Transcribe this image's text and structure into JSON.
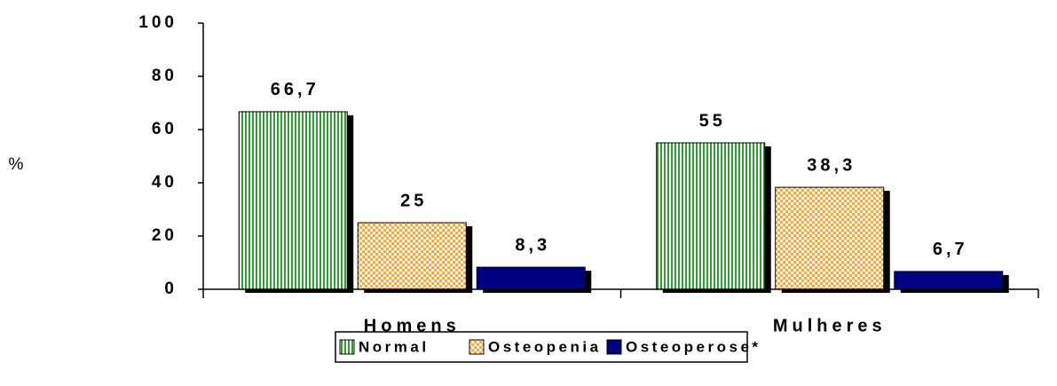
{
  "chart_data": {
    "type": "bar",
    "ylabel": "%",
    "categories": [
      "Homens",
      "Mulheres"
    ],
    "series": [
      {
        "name": "Normal",
        "color": "#2e9e2e",
        "pattern": "vertical-lines",
        "values": [
          66.7,
          55
        ],
        "value_labels": [
          "66,7",
          "55"
        ]
      },
      {
        "name": "Osteopenia",
        "color": "#ffa53c",
        "pattern": "dots",
        "values": [
          25,
          38.3
        ],
        "value_labels": [
          "25",
          "38,3"
        ]
      },
      {
        "name": "Osteoperose*",
        "color": "#000080",
        "pattern": "solid",
        "values": [
          8.3,
          6.7
        ],
        "value_labels": [
          "8,3",
          "6,7"
        ]
      }
    ],
    "ylim": [
      0,
      100
    ],
    "yticks": [
      0,
      20,
      40,
      60,
      80,
      100
    ],
    "legend": "bottom"
  }
}
